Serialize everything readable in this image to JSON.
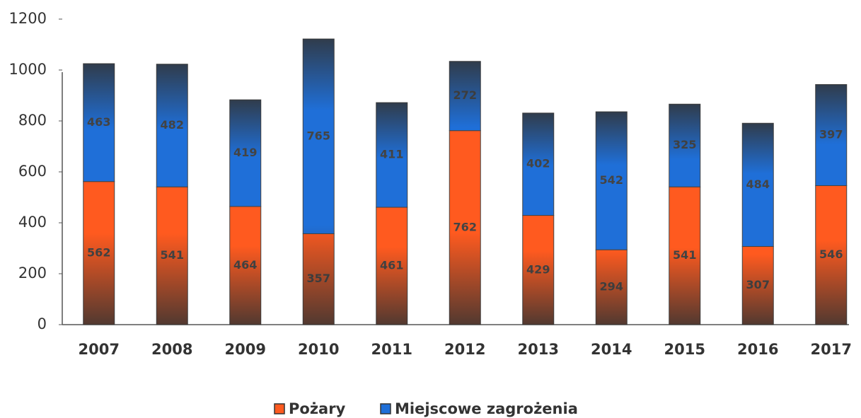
{
  "chart_data": {
    "type": "stacked_bar",
    "categories": [
      "2007",
      "2008",
      "2009",
      "2010",
      "2011",
      "2012",
      "2013",
      "2014",
      "2015",
      "2016",
      "2017"
    ],
    "series": [
      {
        "name": "Pożary",
        "color": "#ff5a1f",
        "values": [
          562,
          541,
          464,
          357,
          461,
          762,
          429,
          294,
          541,
          307,
          546
        ]
      },
      {
        "name": "Miejscowe zagrożenia",
        "color": "#1f6fd8",
        "values": [
          463,
          482,
          419,
          765,
          411,
          272,
          402,
          542,
          325,
          484,
          397
        ]
      }
    ],
    "ylim": [
      0,
      1200
    ],
    "yticks": [
      0,
      200,
      400,
      600,
      800,
      1000,
      1200
    ],
    "grid": false,
    "legend": "bottom"
  }
}
